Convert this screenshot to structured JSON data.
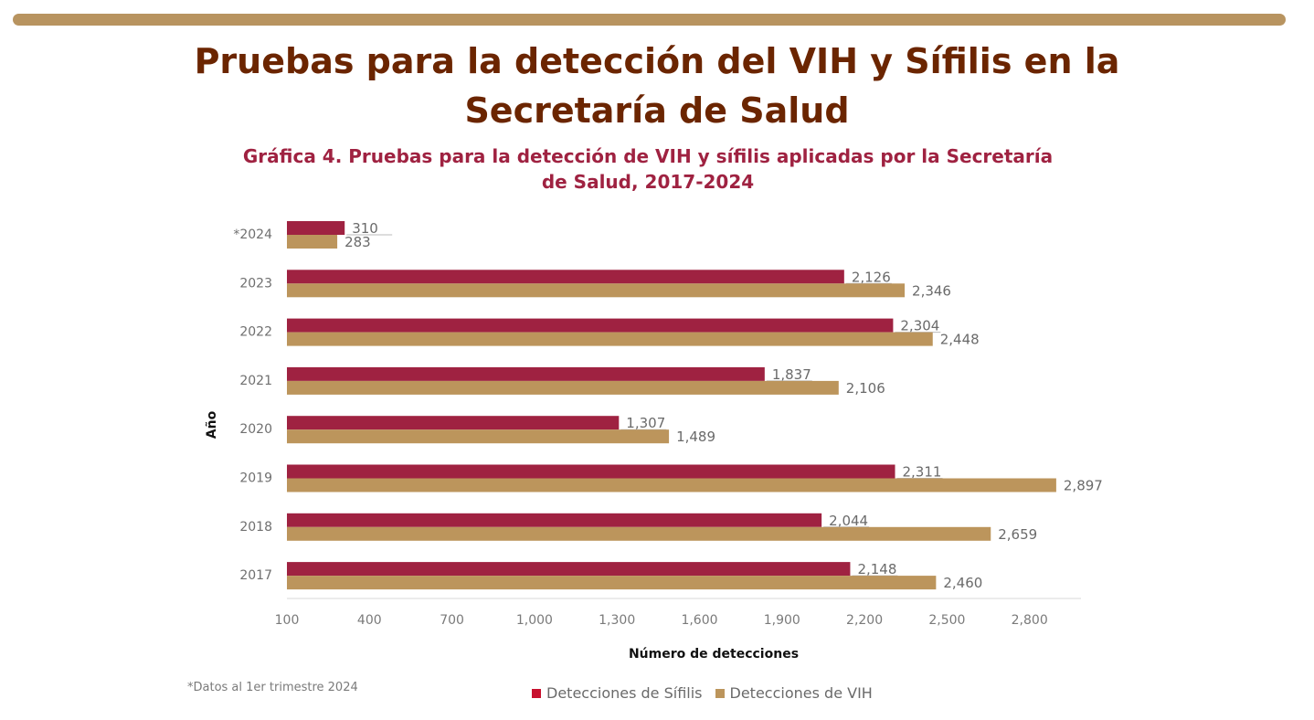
{
  "page": {
    "title_line1": "Pruebas para la detección del VIH y Sífilis en la",
    "title_line2": "Secretaría de Salud"
  },
  "colors": {
    "accent_bar": "#b89460",
    "title": "#6b2500",
    "heading": "#9f2241",
    "sifilis": "#9f2241",
    "vih": "#bc955c"
  },
  "chart_data": {
    "type": "bar",
    "orientation": "horizontal",
    "title_line1": "Gráfica 4. Pruebas para la detección de VIH y sífilis aplicadas por la Secretaría",
    "title_line2": "de Salud, 2017-2024",
    "xlabel": "Número de detecciones",
    "ylabel": "Año",
    "categories": [
      "*2024",
      "2023",
      "2022",
      "2021",
      "2020",
      "2019",
      "2018",
      "2017"
    ],
    "series": [
      {
        "name": "Detecciones de Sífilis",
        "color": "#9f2241",
        "values": [
          310,
          2126,
          2304,
          1837,
          1307,
          2311,
          2044,
          2148
        ],
        "labels": [
          "310",
          "2,126",
          "2,304",
          "1,837",
          "1,307",
          "2,311",
          "2,044",
          "2,148"
        ]
      },
      {
        "name": "Detecciones de VIH",
        "color": "#bc955c",
        "values": [
          283,
          2346,
          2448,
          2106,
          1489,
          2897,
          2659,
          2460
        ],
        "labels": [
          "283",
          "2,346",
          "2,448",
          "2,106",
          "1,489",
          "2,897",
          "2,659",
          "2,460"
        ]
      }
    ],
    "xlim": [
      100,
      3000
    ],
    "xticks": [
      100,
      400,
      700,
      1000,
      1300,
      1600,
      1900,
      2200,
      2500,
      2800
    ],
    "xtick_labels": [
      "100",
      "400",
      "700",
      "1,000",
      "1,300",
      "1,600",
      "1,900",
      "2,200",
      "2,500",
      "2,800"
    ],
    "grid": false,
    "legend_position": "bottom",
    "footnote": "*Datos al 1er trimestre 2024"
  }
}
